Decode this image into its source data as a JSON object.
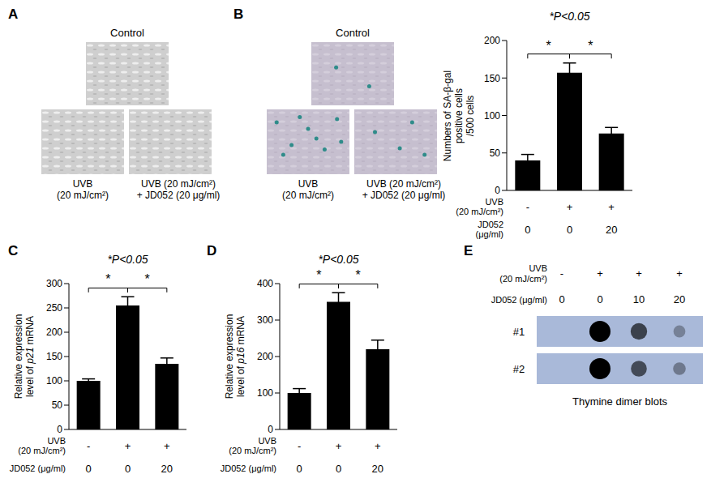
{
  "chart_data": [
    {
      "panel": "B",
      "type": "bar",
      "title": "*P<0.05",
      "y_label": [
        "Numbers of SA-β-gal",
        "positive cells",
        "/500 cells"
      ],
      "categories": [
        null,
        null,
        null
      ],
      "x_rows": [
        {
          "label": [
            "UVB",
            "(20 mJ/cm²)"
          ],
          "values": [
            "-",
            "+",
            "+"
          ]
        },
        {
          "label": [
            "JD052",
            "(μg/ml)"
          ],
          "values": [
            0,
            0,
            20
          ]
        }
      ],
      "values": [
        40,
        157,
        76
      ],
      "errors": [
        8,
        13,
        8
      ],
      "color": "#000000",
      "ylim": [
        0,
        200
      ],
      "yticks": [
        0,
        50,
        100,
        150,
        200
      ],
      "significance": [
        {
          "pair": [
            0,
            1
          ],
          "label": "*"
        },
        {
          "pair": [
            1,
            2
          ],
          "label": "*"
        }
      ]
    },
    {
      "panel": "C",
      "type": "bar",
      "title": "*P<0.05",
      "y_label": [
        "Relative expression",
        "level of p21 mRNA"
      ],
      "categories": [
        null,
        null,
        null
      ],
      "x_rows": [
        {
          "label": [
            "UVB",
            "(20 mJ/cm²)"
          ],
          "values": [
            "-",
            "+",
            "+"
          ]
        },
        {
          "label": [
            "JD052 (μg/ml)"
          ],
          "values": [
            0,
            0,
            20
          ]
        }
      ],
      "values": [
        100,
        255,
        135
      ],
      "errors": [
        4,
        18,
        12
      ],
      "color": "#000000",
      "ylim": [
        0,
        300
      ],
      "yticks": [
        0,
        50,
        100,
        150,
        200,
        250,
        300
      ],
      "significance": [
        {
          "pair": [
            0,
            1
          ],
          "label": "*"
        },
        {
          "pair": [
            1,
            2
          ],
          "label": "*"
        }
      ]
    },
    {
      "panel": "D",
      "type": "bar",
      "title": "*P<0.05",
      "y_label": [
        "Relative expression",
        "level of p16 mRNA"
      ],
      "categories": [
        null,
        null,
        null
      ],
      "x_rows": [
        {
          "label": [
            "UVB",
            "(20 mJ/cm²)"
          ],
          "values": [
            "-",
            "+",
            "+"
          ]
        },
        {
          "label": [
            "JD052 (μg/ml)"
          ],
          "values": [
            0,
            0,
            20
          ]
        }
      ],
      "values": [
        100,
        350,
        220
      ],
      "errors": [
        12,
        25,
        25
      ],
      "color": "#000000",
      "ylim": [
        0,
        400
      ],
      "yticks": [
        0,
        100,
        200,
        300,
        400
      ],
      "significance": [
        {
          "pair": [
            0,
            1
          ],
          "label": "*"
        },
        {
          "pair": [
            1,
            2
          ],
          "label": "*"
        }
      ]
    }
  ],
  "images": [
    {
      "panel": "A",
      "control": "Control",
      "captions": [
        [
          "UVB",
          "(20 mJ/cm²)"
        ],
        [
          "UVB (20 mJ/cm²)",
          "+ JD052 (20 μg/ml)"
        ]
      ]
    },
    {
      "panel": "B",
      "control": "Control",
      "captions": [
        [
          "UVB",
          "(20 mJ/cm²)"
        ],
        [
          "UVB (20 mJ/cm²)",
          "+ JD052 (20 μg/ml)"
        ]
      ]
    }
  ],
  "blot": {
    "panel": "E",
    "rows": [
      {
        "label": [
          "UVB",
          "(20 mJ/cm²)"
        ],
        "values": [
          "-",
          "+",
          "+",
          "+"
        ]
      },
      {
        "label": [
          "JD052 (μg/ml)"
        ],
        "values": [
          0,
          0,
          10,
          20
        ]
      }
    ],
    "strips": [
      {
        "label": "#1",
        "signal": [
          0,
          1,
          0.65,
          0.3
        ]
      },
      {
        "label": "#2",
        "signal": [
          0,
          1,
          0.6,
          0.35
        ]
      }
    ],
    "caption": "Thymine dimer blots"
  }
}
